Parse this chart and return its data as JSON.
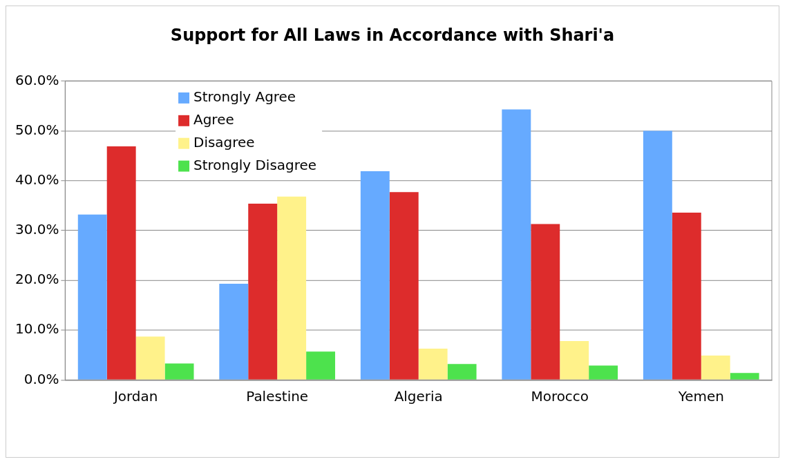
{
  "chart_data": {
    "type": "bar",
    "title": "Support for All Laws in Accordance with Shari'a",
    "categories": [
      "Jordan",
      "Palestine",
      "Algeria",
      "Morocco",
      "Yemen"
    ],
    "series": [
      {
        "name": "Strongly Agree",
        "color": "#66aaff",
        "values": [
          33.2,
          19.3,
          41.9,
          54.3,
          50.0
        ]
      },
      {
        "name": "Agree",
        "color": "#dd2c2c",
        "values": [
          46.9,
          35.4,
          37.7,
          31.3,
          33.6
        ]
      },
      {
        "name": "Disagree",
        "color": "#fff28a",
        "values": [
          8.7,
          36.8,
          6.3,
          7.8,
          4.9
        ]
      },
      {
        "name": "Strongly Disagree",
        "color": "#4de24d",
        "values": [
          3.3,
          5.7,
          3.2,
          2.9,
          1.4
        ]
      }
    ],
    "ylim": [
      0,
      60
    ],
    "yticks": [
      {
        "value": 0,
        "label": "0.0%"
      },
      {
        "value": 10,
        "label": "10.0%"
      },
      {
        "value": 20,
        "label": "20.0%"
      },
      {
        "value": 30,
        "label": "30.0%"
      },
      {
        "value": 40,
        "label": "40.0%"
      },
      {
        "value": 50,
        "label": "50.0%"
      },
      {
        "value": 60,
        "label": "60.0%"
      }
    ],
    "grid": "y",
    "legend": "top left"
  }
}
